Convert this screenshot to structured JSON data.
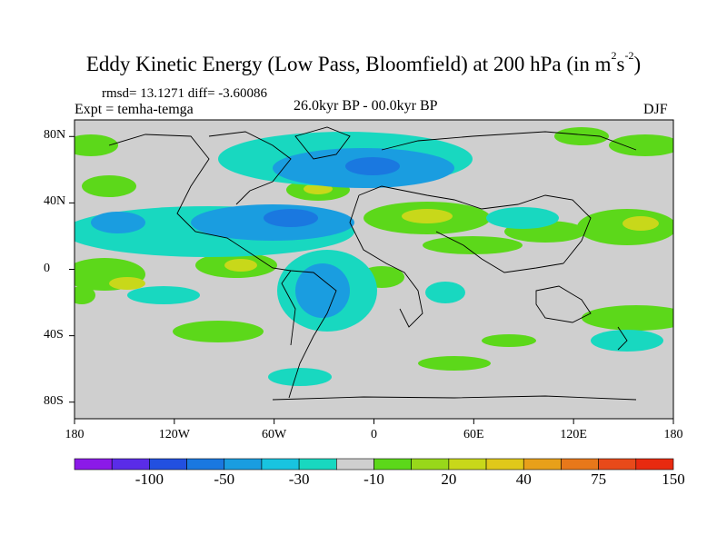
{
  "title": "Eddy Kinetic Energy (Low Pass, Bloomfield) at 200 hPa (in m",
  "title_unit_sup1": "2",
  "title_unit_s": "s",
  "title_unit_sup2": "-2",
  "title_close": ")",
  "stats": "rmsd= 13.1271 diff= -3.60086",
  "expt": "Expt = temha-temga",
  "period": "26.0kyr BP - 00.0kyr BP",
  "season": "DJF",
  "y_axis": {
    "ticks": [
      "80N",
      "40N",
      "0",
      "40S",
      "80S"
    ],
    "values": [
      80,
      40,
      0,
      -40,
      -80
    ]
  },
  "x_axis": {
    "ticks": [
      "180",
      "120W",
      "60W",
      "0",
      "60E",
      "120E",
      "180"
    ],
    "values": [
      -180,
      -120,
      -60,
      0,
      60,
      120,
      180
    ]
  },
  "colorbar": {
    "colors": [
      "#8b1ae8",
      "#5a2ce8",
      "#2250e0",
      "#1a78e0",
      "#1a9de0",
      "#18c4e0",
      "#18d8c0",
      "#cfcfcf",
      "#5cd81a",
      "#98d81a",
      "#c8d81a",
      "#e0c81a",
      "#e8a01a",
      "#e8781a",
      "#e84a1a",
      "#e82a10"
    ],
    "labels": [
      "-100",
      "-50",
      "-30",
      "-10",
      "20",
      "40",
      "75",
      "150"
    ]
  },
  "map_colors": {
    "ocean_background": "#cfcfcf",
    "coastline": "#000000"
  }
}
